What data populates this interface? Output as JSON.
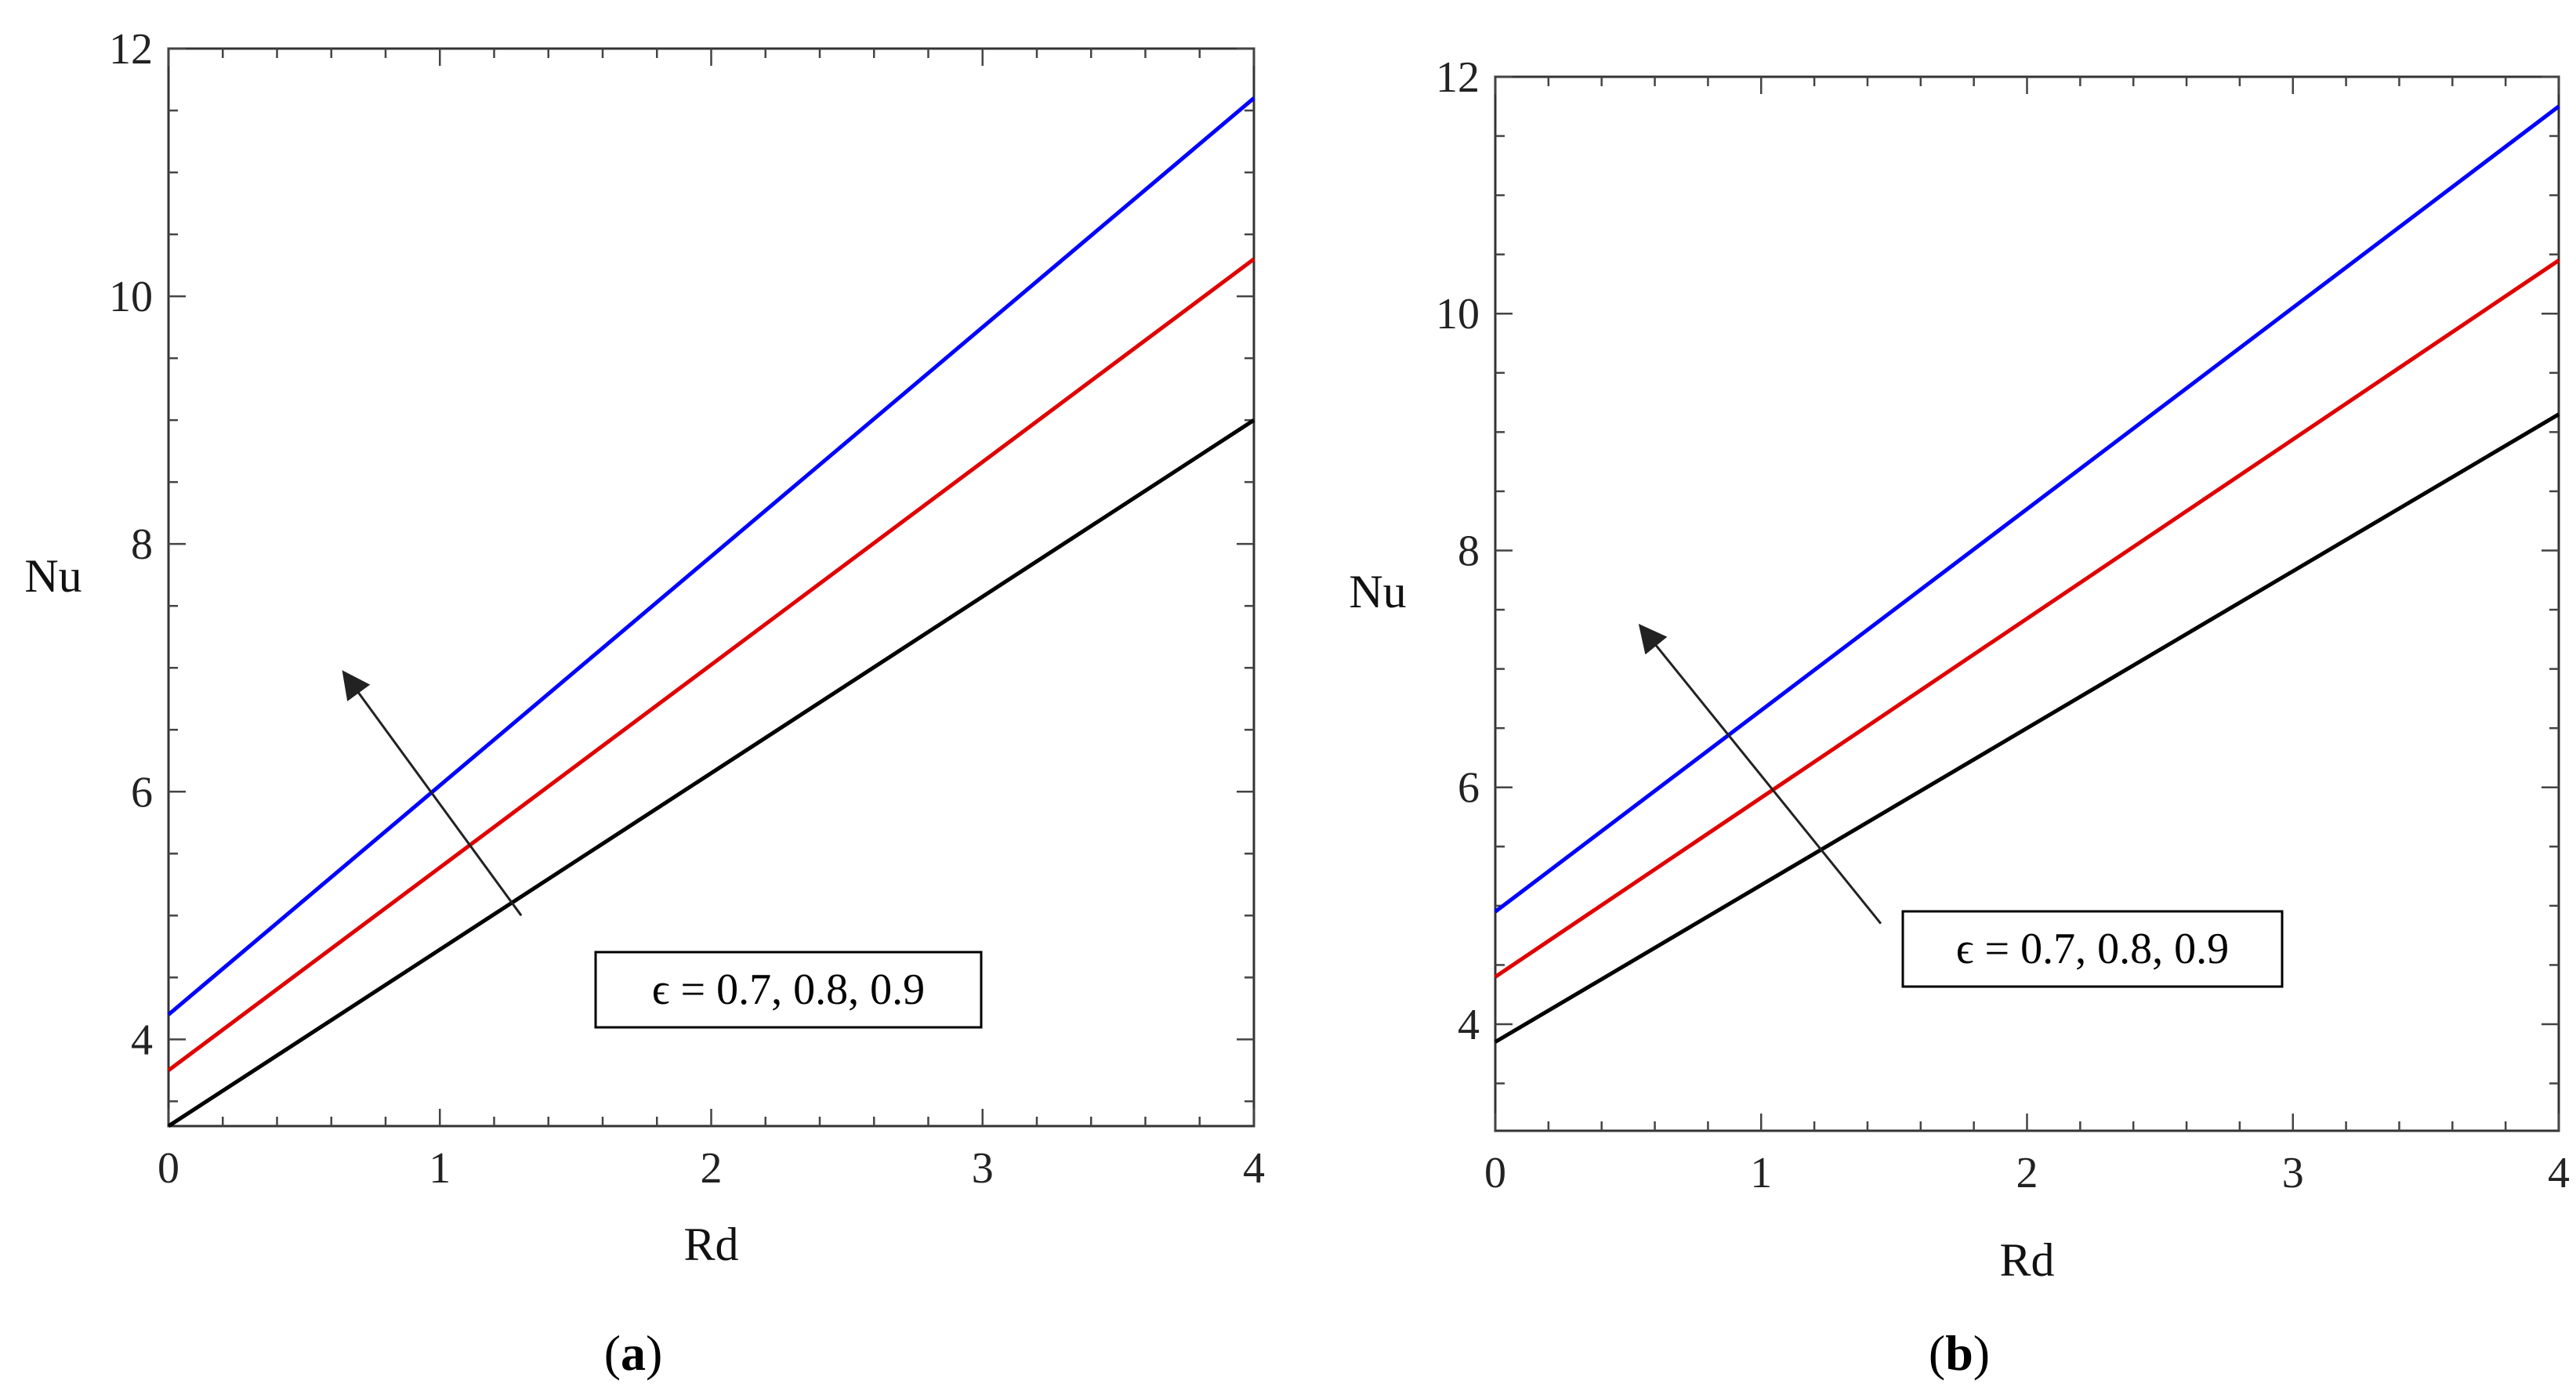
{
  "chart_data": [
    {
      "type": "line",
      "panel": "(a)",
      "panel_letter": "a",
      "xlabel": "Rd",
      "ylabel": "Nu",
      "xlim": [
        0,
        4
      ],
      "ylim": [
        3.3,
        12
      ],
      "xticks": [
        0,
        1,
        2,
        3,
        4
      ],
      "yticks": [
        4,
        6,
        8,
        10,
        12
      ],
      "annotation": "ϵ = 0.7, 0.8, 0.9",
      "annotation_arrow": {
        "from": [
          1.3,
          5.0
        ],
        "to": [
          0.65,
          6.95
        ]
      },
      "grid": false,
      "series": [
        {
          "color": "#000000",
          "x": [
            0,
            4
          ],
          "values": [
            3.3,
            9.0
          ]
        },
        {
          "color": "#e00000",
          "x": [
            0,
            4
          ],
          "values": [
            3.75,
            10.3
          ]
        },
        {
          "color": "#0000ff",
          "x": [
            0,
            4
          ],
          "values": [
            4.2,
            11.6
          ]
        }
      ]
    },
    {
      "type": "line",
      "panel": "(b)",
      "panel_letter": "b",
      "xlabel": "Rd",
      "ylabel": "Nu",
      "xlim": [
        0,
        4
      ],
      "ylim": [
        3.1,
        12
      ],
      "xticks": [
        0,
        1,
        2,
        3,
        4
      ],
      "yticks": [
        4,
        6,
        8,
        10,
        12
      ],
      "annotation": "ϵ = 0.7, 0.8, 0.9",
      "annotation_arrow": {
        "from": [
          1.45,
          4.85
        ],
        "to": [
          0.55,
          7.35
        ]
      },
      "grid": false,
      "series": [
        {
          "color": "#000000",
          "x": [
            0,
            4
          ],
          "values": [
            3.85,
            9.15
          ]
        },
        {
          "color": "#e00000",
          "x": [
            0,
            4
          ],
          "values": [
            4.4,
            10.45
          ]
        },
        {
          "color": "#0000ff",
          "x": [
            0,
            4
          ],
          "values": [
            4.95,
            11.75
          ]
        }
      ]
    }
  ]
}
